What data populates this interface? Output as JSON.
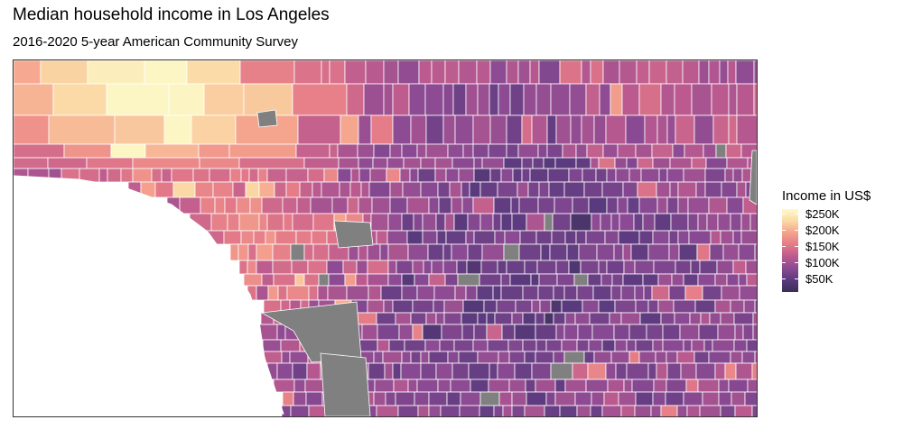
{
  "title": "Median household income in Los Angeles",
  "subtitle": "2016-2020 5-year American Community Survey",
  "legend": {
    "title": "Income in US$",
    "labels": [
      "$250K",
      "$200K",
      "$150K",
      "$100K",
      "$50K"
    ],
    "values": [
      250000,
      200000,
      150000,
      100000,
      50000
    ],
    "range": [
      25000,
      260000
    ],
    "palette": [
      "#3b2f53",
      "#5a3a7e",
      "#8a4a93",
      "#bb5a8f",
      "#e47a88",
      "#f5a38d",
      "#fbd9a6",
      "#fcfbc9"
    ]
  },
  "map": {
    "na_color": "#808080",
    "ocean_color": "#ffffff",
    "border_color": "#ffffff"
  }
}
